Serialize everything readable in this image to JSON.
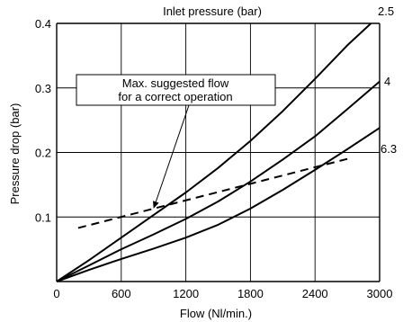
{
  "chart_data": {
    "type": "line",
    "title": "Inlet pressure  (bar)",
    "xlabel": "Flow (Nl/min.)",
    "ylabel": "Pressure drop (bar)",
    "xlim": [
      0,
      3000
    ],
    "ylim": [
      0,
      0.4
    ],
    "xticks": [
      0,
      600,
      1200,
      1800,
      2400,
      3000
    ],
    "yticks": [
      0.1,
      0.2,
      0.3,
      0.4
    ],
    "xtick_labels": [
      "0",
      "600",
      "1200",
      "1800",
      "2400",
      "3000"
    ],
    "ytick_labels": [
      "0.1",
      "0.2",
      "0.3",
      "0.4"
    ],
    "grid": true,
    "series": [
      {
        "name": "2.5",
        "x": [
          0,
          300,
          600,
          900,
          1200,
          1500,
          1800,
          2100,
          2400,
          2700,
          2920
        ],
        "y": [
          0,
          0.033,
          0.068,
          0.103,
          0.138,
          0.176,
          0.218,
          0.264,
          0.314,
          0.366,
          0.4
        ]
      },
      {
        "name": "4",
        "x": [
          0,
          300,
          600,
          900,
          1200,
          1500,
          1800,
          2100,
          2400,
          2700,
          3000
        ],
        "y": [
          0,
          0.025,
          0.05,
          0.073,
          0.097,
          0.124,
          0.155,
          0.189,
          0.225,
          0.267,
          0.31
        ]
      },
      {
        "name": "6.3",
        "x": [
          0,
          300,
          600,
          900,
          1200,
          1500,
          1800,
          2100,
          2400,
          2700,
          3000
        ],
        "y": [
          0,
          0.018,
          0.035,
          0.051,
          0.068,
          0.088,
          0.113,
          0.142,
          0.173,
          0.205,
          0.238
        ]
      }
    ],
    "reference_line": {
      "name": "Max. suggested flow for a correct operation",
      "style": "dashed",
      "x": [
        200,
        2700
      ],
      "y": [
        0.083,
        0.19
      ]
    },
    "annotation": {
      "lines": [
        "Max. suggested flow",
        "for a correct operation"
      ],
      "points_to": {
        "x": 900,
        "y": 0.113
      }
    },
    "colors": {
      "line": "#000000",
      "grid": "#000000",
      "background": "#ffffff"
    }
  }
}
